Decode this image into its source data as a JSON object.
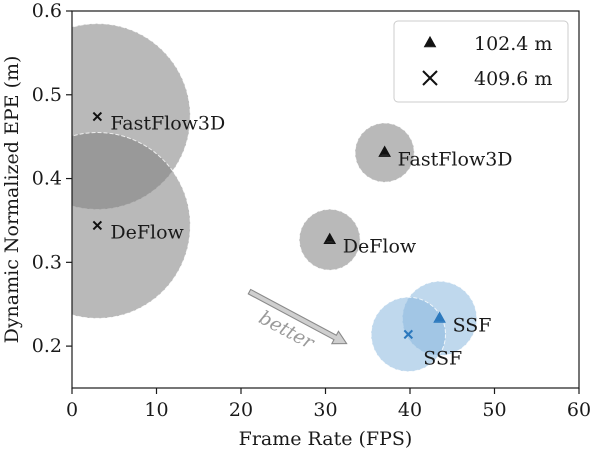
{
  "chart_data": {
    "type": "scatter",
    "xlabel": "Frame Rate (FPS)",
    "ylabel": "Dynamic Normalized EPE (m)",
    "xlim": [
      0,
      60
    ],
    "ylim": [
      0.15,
      0.6
    ],
    "xticks": [
      0,
      10,
      20,
      30,
      40,
      50,
      60
    ],
    "yticks": [
      0.2,
      0.3,
      0.4,
      0.5,
      0.6
    ],
    "xtick_labels": [
      "0",
      "10",
      "20",
      "30",
      "40",
      "50",
      "60"
    ],
    "ytick_labels": [
      "0.2",
      "0.3",
      "0.4",
      "0.5",
      "0.6"
    ],
    "grid": false,
    "legend_position": "top-right",
    "legend": [
      {
        "marker": "triangle",
        "label": "102.4 m"
      },
      {
        "marker": "x",
        "label": "409.6 m"
      }
    ],
    "series": [
      {
        "marker": "triangle",
        "points": [
          {
            "label": "FastFlow3D",
            "x": 37.0,
            "y": 0.431,
            "radius_fps": 3.5,
            "color": "#808080"
          },
          {
            "label": "DeFlow",
            "x": 30.5,
            "y": 0.327,
            "radius_fps": 3.6,
            "color": "#808080"
          },
          {
            "label": "SSF",
            "x": 43.5,
            "y": 0.233,
            "radius_fps": 4.4,
            "color": "#8ab8de"
          }
        ]
      },
      {
        "marker": "x",
        "points": [
          {
            "label": "FastFlow3D",
            "x": 3.0,
            "y": 0.474,
            "radius_fps": 11.0,
            "color": "#808080"
          },
          {
            "label": "DeFlow",
            "x": 3.0,
            "y": 0.344,
            "radius_fps": 11.0,
            "color": "#808080"
          },
          {
            "label": "SSF",
            "x": 39.8,
            "y": 0.214,
            "radius_fps": 4.4,
            "color": "#8ab8de"
          }
        ]
      }
    ],
    "annotation": {
      "text": "better",
      "from": [
        21.0,
        0.265
      ],
      "to": [
        32.5,
        0.203
      ]
    }
  }
}
